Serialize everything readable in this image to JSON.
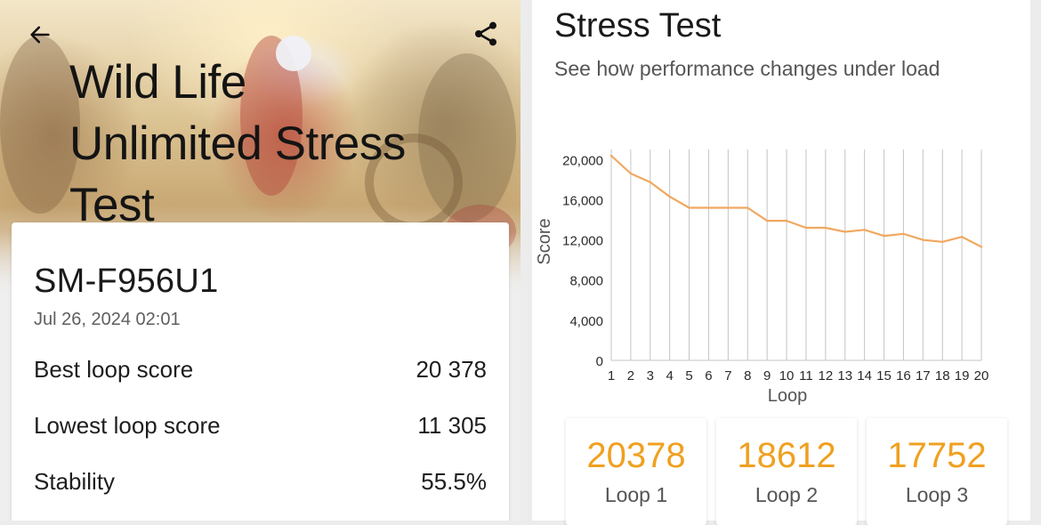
{
  "header": {
    "title_lines": [
      "Wild Life",
      "Unlimited Stress",
      "Test"
    ],
    "back_icon": "arrow-back-icon",
    "share_icon": "share-icon"
  },
  "result": {
    "device": "SM-F956U1",
    "date": "Jul 26, 2024 02:01",
    "stats": [
      {
        "label": "Best loop score",
        "value": "20 378"
      },
      {
        "label": "Lowest loop score",
        "value": "11 305"
      },
      {
        "label": "Stability",
        "value": "55.5%"
      }
    ]
  },
  "stress": {
    "title": "Stress Test",
    "subtitle": "See how performance changes under load",
    "loops": [
      {
        "score": "20378",
        "label": "Loop 1"
      },
      {
        "score": "18612",
        "label": "Loop 2"
      },
      {
        "score": "17752",
        "label": "Loop 3"
      }
    ]
  },
  "colors": {
    "accent": "#f0a020",
    "line": "#f0a860",
    "grid": "#c4c4c4"
  },
  "chart_data": {
    "type": "line",
    "xlabel": "Loop",
    "ylabel": "Score",
    "x": [
      1,
      2,
      3,
      4,
      5,
      6,
      7,
      8,
      9,
      10,
      11,
      12,
      13,
      14,
      15,
      16,
      17,
      18,
      19,
      20
    ],
    "series": [
      {
        "values": [
          20378,
          18612,
          17752,
          16300,
          15200,
          15200,
          15200,
          15200,
          13900,
          13900,
          13200,
          13200,
          12800,
          13000,
          12400,
          12600,
          12000,
          11800,
          12300,
          11305
        ]
      }
    ],
    "yticks": [
      "0",
      "4,000",
      "8,000",
      "12,000",
      "16,000",
      "20,000"
    ],
    "ylim": [
      0,
      21000
    ],
    "grid": "vertical"
  }
}
